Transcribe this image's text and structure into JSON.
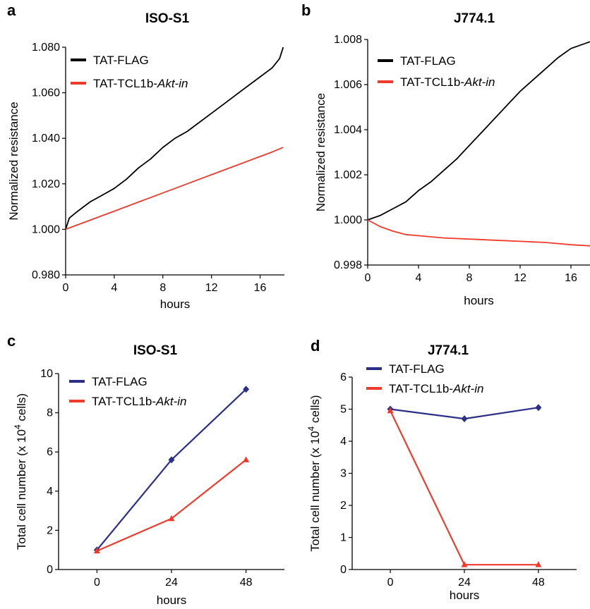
{
  "colors": {
    "black": "#000000",
    "red": "#ef3b2c",
    "navy": "#2b2f8a"
  },
  "chart_data": [
    {
      "panel": "a",
      "type": "line",
      "title": "ISO-S1",
      "xlabel": "hours",
      "ylabel": "Normalized resistance",
      "xlim": [
        0,
        18
      ],
      "ylim": [
        0.98,
        1.08
      ],
      "x_ticks": [
        "0",
        "4",
        "8",
        "12",
        "16"
      ],
      "y_ticks": [
        "0.980",
        "1.000",
        "1.020",
        "1.040",
        "1.060",
        "1.080"
      ],
      "legend_position": "top-left",
      "series": [
        {
          "name": "TAT-FLAG",
          "color": "#000000",
          "x": [
            0,
            0.3,
            1,
            2,
            3,
            4,
            5,
            6,
            7,
            8,
            9,
            10,
            11,
            12,
            13,
            14,
            15,
            16,
            17,
            17.6,
            17.9
          ],
          "y": [
            1.0,
            1.005,
            1.008,
            1.012,
            1.015,
            1.018,
            1.022,
            1.027,
            1.031,
            1.036,
            1.04,
            1.043,
            1.047,
            1.051,
            1.055,
            1.059,
            1.063,
            1.067,
            1.071,
            1.075,
            1.08
          ]
        },
        {
          "name": "TAT-TCL1b-Akt-in",
          "color": "#ef3b2c",
          "x": [
            0,
            1,
            2,
            3,
            4,
            5,
            6,
            7,
            8,
            9,
            10,
            11,
            12,
            13,
            14,
            15,
            16,
            17,
            17.9
          ],
          "y": [
            1.0,
            1.002,
            1.004,
            1.006,
            1.008,
            1.01,
            1.012,
            1.014,
            1.016,
            1.018,
            1.02,
            1.022,
            1.024,
            1.026,
            1.028,
            1.03,
            1.032,
            1.034,
            1.036
          ]
        }
      ]
    },
    {
      "panel": "b",
      "type": "line",
      "title": "J774.1",
      "xlabel": "hours",
      "ylabel": "Normalized resistance",
      "xlim": [
        0,
        17.5
      ],
      "ylim": [
        0.998,
        1.008
      ],
      "x_ticks": [
        "0",
        "4",
        "8",
        "12",
        "16"
      ],
      "y_ticks": [
        "0.998",
        "1.000",
        "1.002",
        "1.004",
        "1.006",
        "1.008"
      ],
      "legend_position": "top-left",
      "series": [
        {
          "name": "TAT-FLAG",
          "color": "#000000",
          "x": [
            0,
            1,
            2,
            3,
            4,
            5,
            6,
            7,
            8,
            9,
            10,
            11,
            12,
            13,
            14,
            15,
            16,
            17.5
          ],
          "y": [
            1.0,
            1.0002,
            1.0005,
            1.0008,
            1.0013,
            1.0017,
            1.0022,
            1.0027,
            1.0033,
            1.0039,
            1.0045,
            1.0051,
            1.0057,
            1.0062,
            1.0067,
            1.0072,
            1.0076,
            1.0079
          ]
        },
        {
          "name": "TAT-TCL1b-Akt-in",
          "color": "#ef3b2c",
          "x": [
            0,
            1,
            2,
            3,
            4,
            6,
            8,
            10,
            12,
            14,
            16,
            17.5
          ],
          "y": [
            1.0,
            0.9997,
            0.9995,
            0.99935,
            0.9993,
            0.9992,
            0.99915,
            0.9991,
            0.99905,
            0.999,
            0.9989,
            0.99885
          ]
        }
      ]
    },
    {
      "panel": "c",
      "type": "line",
      "title": "ISO-S1",
      "xlabel": "hours",
      "ylabel": "Total cell number (x 10",
      "ylabel_sup": "4",
      "ylabel_end": " cells)",
      "categories": [
        "0",
        "24",
        "48"
      ],
      "ylim": [
        0,
        10
      ],
      "y_ticks": [
        "0",
        "2",
        "4",
        "6",
        "8",
        "10"
      ],
      "legend_position": "top-left",
      "series": [
        {
          "name": "TAT-FLAG",
          "color": "#2b2f8a",
          "marker": "diamond",
          "values": [
            1.0,
            5.6,
            9.2
          ]
        },
        {
          "name": "TAT-TCL1b-Akt-in",
          "color": "#ef3b2c",
          "marker": "triangle",
          "values": [
            0.95,
            2.6,
            5.6
          ]
        }
      ]
    },
    {
      "panel": "d",
      "type": "line",
      "title": "J774.1",
      "xlabel": "hours",
      "ylabel": "Total cell number (x 10",
      "ylabel_sup": "4",
      "ylabel_end": " cells)",
      "categories": [
        "0",
        "24",
        "48"
      ],
      "ylim": [
        0,
        6
      ],
      "y_ticks": [
        "0",
        "1",
        "2",
        "3",
        "4",
        "5",
        "6"
      ],
      "legend_position": "top-left",
      "series": [
        {
          "name": "TAT-FLAG",
          "color": "#2b2f8a",
          "marker": "diamond",
          "values": [
            5.0,
            4.7,
            5.05
          ]
        },
        {
          "name": "TAT-TCL1b-Akt-in",
          "color": "#ef3b2c",
          "marker": "triangle",
          "values": [
            4.95,
            0.15,
            0.15
          ]
        }
      ]
    }
  ]
}
